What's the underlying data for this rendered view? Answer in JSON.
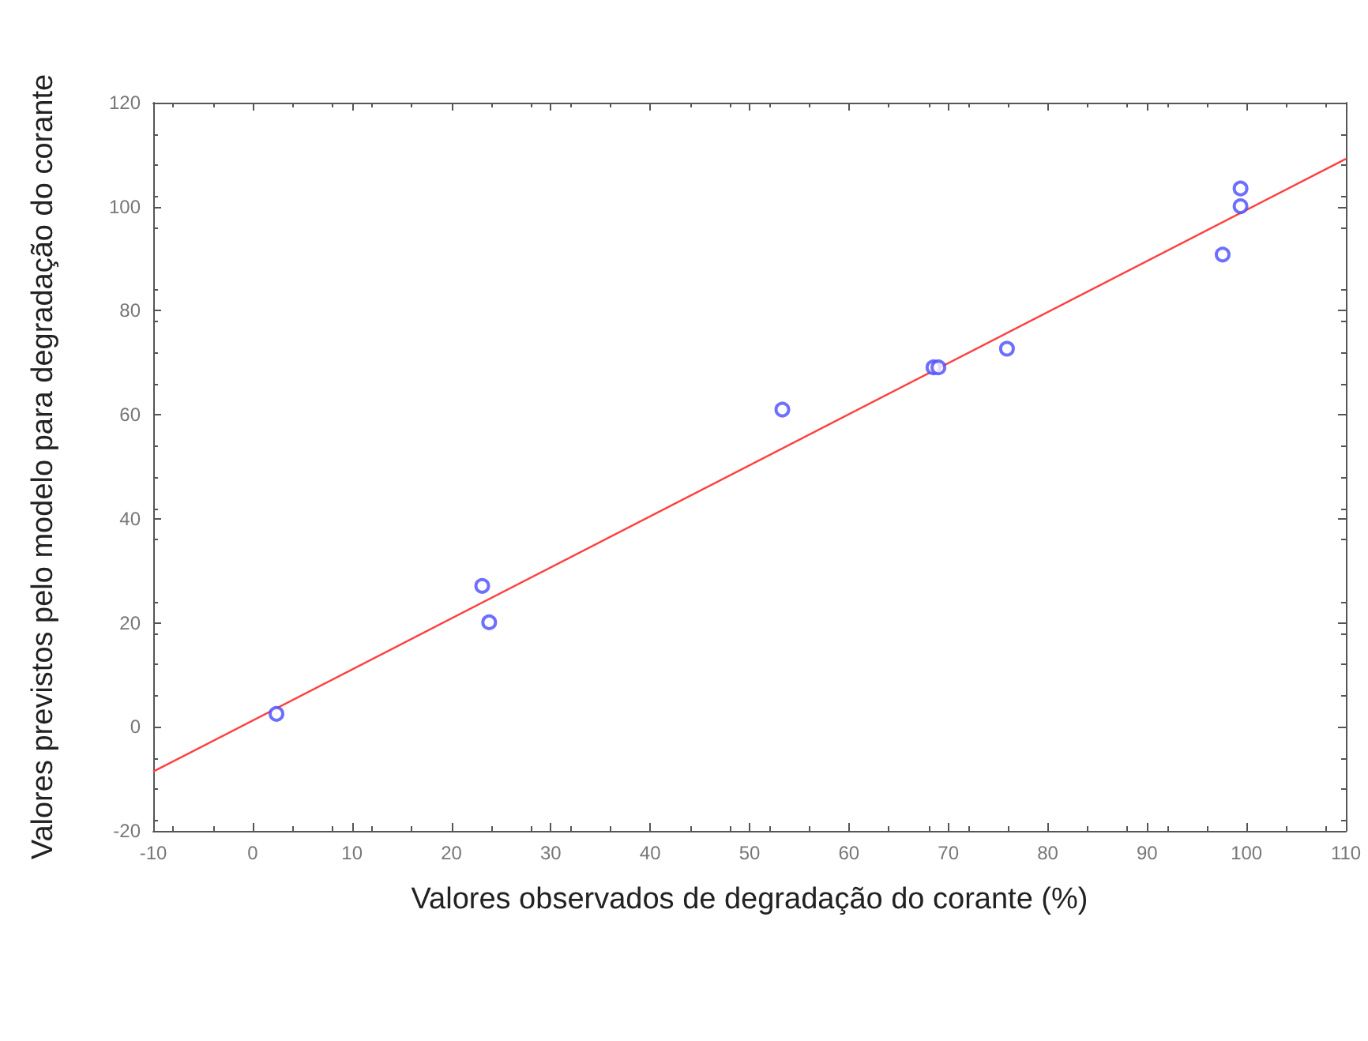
{
  "chart_data": {
    "type": "scatter",
    "xlabel": "Valores observados de degradação do corante (%)",
    "ylabel": "Valores previstos pelo modelo para degradação do corante",
    "xlim": [
      -10,
      110
    ],
    "xticks": [
      -10,
      0,
      10,
      20,
      30,
      40,
      50,
      60,
      70,
      80,
      90,
      100,
      110
    ],
    "ylim": [
      -20,
      120
    ],
    "yticks": [
      -20,
      0,
      20,
      40,
      60,
      80,
      100,
      120
    ],
    "series": [
      {
        "color": "#4a4aff",
        "marker": "circle",
        "x": [
          2.4,
          23.1,
          23.8,
          53.3,
          68.5,
          69.0,
          75.9,
          97.6,
          99.4,
          99.4
        ],
        "values": [
          2.5,
          27.1,
          20.1,
          61.0,
          69.1,
          69.1,
          72.7,
          90.8,
          103.5,
          100.1
        ]
      },
      {
        "type": "line",
        "color": "#ff4040",
        "marker": "none",
        "line_style": "solid",
        "x": [
          -10,
          110
        ],
        "values": [
          -8.6,
          109.2
        ]
      }
    ]
  }
}
